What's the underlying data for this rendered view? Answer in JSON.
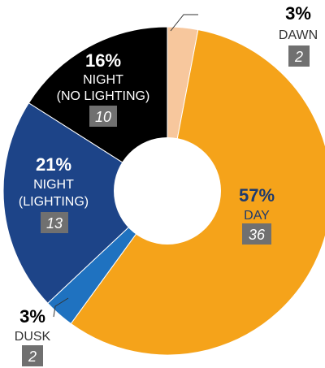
{
  "chart_data": {
    "type": "pie",
    "donut": true,
    "slices": [
      {
        "label": "DAWN",
        "percent": "3%",
        "count": 2,
        "value": 3,
        "color": "#f7c79d"
      },
      {
        "label": "DAY",
        "percent": "57%",
        "count": 36,
        "value": 57,
        "color": "#f5a31a"
      },
      {
        "label": "DUSK",
        "percent": "3%",
        "count": 2,
        "value": 3,
        "color": "#1f72c0"
      },
      {
        "label_lines": [
          "NIGHT",
          "(LIGHTING)"
        ],
        "percent": "21%",
        "count": 13,
        "value": 21,
        "color": "#1d4488"
      },
      {
        "label_lines": [
          "NIGHT",
          "(NO LIGHTING)"
        ],
        "percent": "16%",
        "count": 10,
        "value": 16,
        "color": "#000000"
      }
    ],
    "count_box_color": "#707070"
  }
}
